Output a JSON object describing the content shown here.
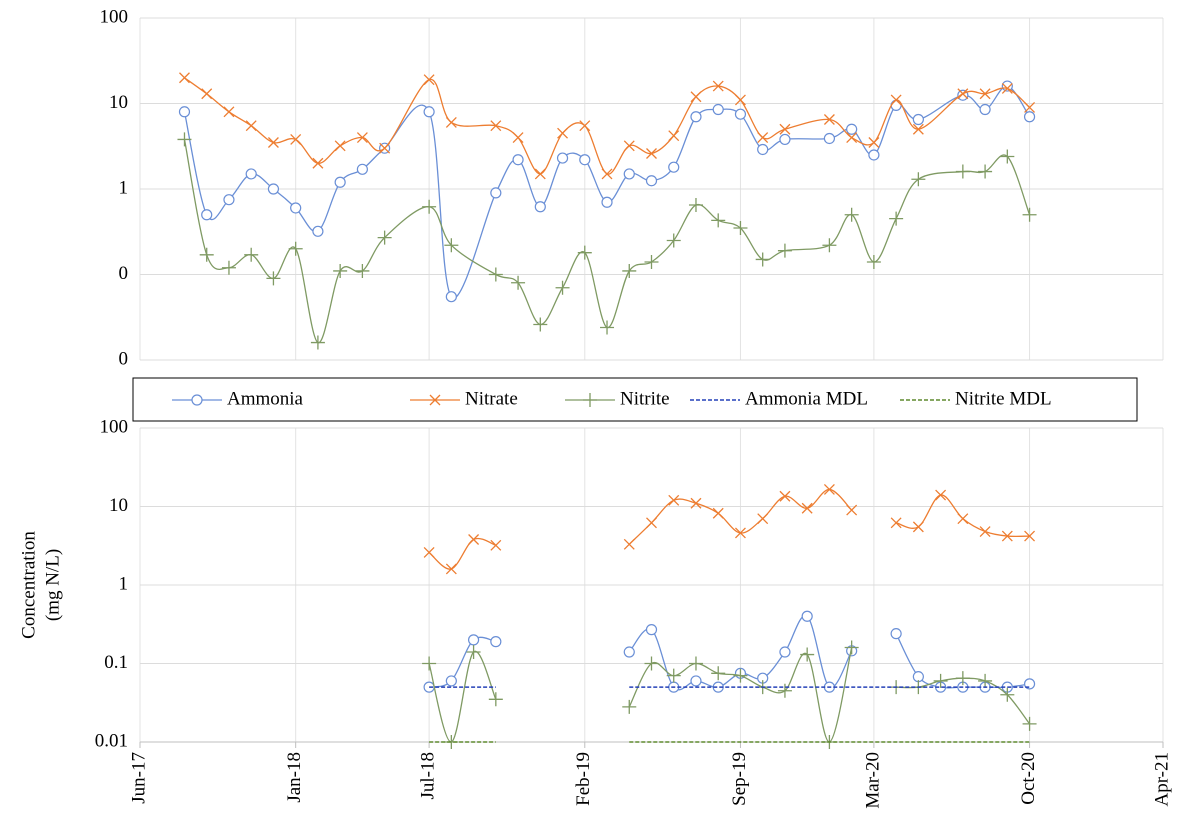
{
  "chart_data": [
    {
      "type": "line",
      "log_y": true,
      "grid": true,
      "ylim": [
        0.01,
        100
      ],
      "yticks": [
        100,
        10,
        1,
        {
          "value": 0.1,
          "label": "0"
        },
        {
          "value": 0.01,
          "label": "0"
        }
      ],
      "series": [
        {
          "color": "#6a8fd6",
          "marker": "circle",
          "x": [
            "2017-08",
            "2017-09",
            "2017-10",
            "2017-11",
            "2017-12",
            "2018-01",
            "2018-02",
            "2018-03",
            "2018-04",
            "2018-05",
            "2018-07",
            "2018-08",
            "2018-10",
            "2018-11",
            "2018-12",
            "2019-01",
            "2019-02",
            "2019-03",
            "2019-04",
            "2019-05",
            "2019-06",
            "2019-07",
            "2019-08",
            "2019-09",
            "2019-10",
            "2019-11",
            "2020-01",
            "2020-02",
            "2020-03",
            "2020-04",
            "2020-05",
            "2020-07",
            "2020-08",
            "2020-09",
            "2020-10"
          ],
          "values": [
            8,
            0.5,
            0.75,
            1.5,
            1,
            0.6,
            0.32,
            1.2,
            1.7,
            3,
            8,
            0.055,
            0.9,
            2.2,
            0.62,
            2.3,
            2.2,
            0.7,
            1.5,
            1.25,
            1.8,
            7,
            8.5,
            7.5,
            2.9,
            3.8,
            3.9,
            5,
            2.5,
            9.5,
            6.5,
            12.5,
            8.5,
            16,
            7
          ]
        },
        {
          "color": "#ed7d31",
          "marker": "cross",
          "x": [
            "2017-08",
            "2017-09",
            "2017-10",
            "2017-11",
            "2017-12",
            "2018-01",
            "2018-02",
            "2018-03",
            "2018-04",
            "2018-05",
            "2018-07",
            "2018-08",
            "2018-10",
            "2018-11",
            "2018-12",
            "2019-01",
            "2019-02",
            "2019-03",
            "2019-04",
            "2019-05",
            "2019-06",
            "2019-07",
            "2019-08",
            "2019-09",
            "2019-10",
            "2019-11",
            "2020-01",
            "2020-02",
            "2020-03",
            "2020-04",
            "2020-05",
            "2020-07",
            "2020-08",
            "2020-09",
            "2020-10"
          ],
          "values": [
            20,
            13,
            8,
            5.5,
            3.5,
            3.8,
            2,
            3.2,
            4,
            3,
            19,
            6,
            5.5,
            4,
            1.5,
            4.5,
            5.5,
            1.5,
            3.2,
            2.6,
            4.2,
            12,
            16,
            11,
            4,
            5,
            6.5,
            4,
            3.5,
            11,
            5,
            13,
            13,
            15,
            9
          ]
        },
        {
          "color": "#7f9a63",
          "marker": "plus",
          "x": [
            "2017-08",
            "2017-09",
            "2017-10",
            "2017-11",
            "2017-12",
            "2018-01",
            "2018-02",
            "2018-03",
            "2018-04",
            "2018-05",
            "2018-07",
            "2018-08",
            "2018-10",
            "2018-11",
            "2018-12",
            "2019-01",
            "2019-02",
            "2019-03",
            "2019-04",
            "2019-05",
            "2019-06",
            "2019-07",
            "2019-08",
            "2019-09",
            "2019-10",
            "2019-11",
            "2020-01",
            "2020-02",
            "2020-03",
            "2020-04",
            "2020-05",
            "2020-07",
            "2020-08",
            "2020-09",
            "2020-10"
          ],
          "values": [
            3.8,
            0.17,
            0.12,
            0.17,
            0.09,
            0.2,
            0.016,
            0.11,
            0.11,
            0.27,
            0.62,
            0.22,
            0.1,
            0.08,
            0.026,
            0.07,
            0.18,
            0.024,
            0.11,
            0.14,
            0.25,
            0.65,
            0.43,
            0.35,
            0.15,
            0.19,
            0.22,
            0.5,
            0.14,
            0.45,
            1.3,
            1.6,
            1.6,
            2.4,
            0.5
          ]
        }
      ]
    },
    {
      "type": "line",
      "log_y": true,
      "grid": true,
      "ylim": [
        0.01,
        100
      ],
      "yticks": [
        100,
        10,
        1,
        0.1,
        0.01
      ],
      "ylabel": [
        "Concentration",
        "(mg N/L)"
      ],
      "xlim": [
        "2017-06",
        "2021-04"
      ],
      "xticks": [
        {
          "value": "2017-06",
          "label": "Jun-17"
        },
        {
          "value": "2018-01",
          "label": "Jan-18"
        },
        {
          "value": "2018-07",
          "label": "Jul-18"
        },
        {
          "value": "2019-02",
          "label": "Feb-19"
        },
        {
          "value": "2019-09",
          "label": "Sep-19"
        },
        {
          "value": "2020-03",
          "label": "Mar-20"
        },
        {
          "value": "2020-10",
          "label": "Oct-20"
        },
        {
          "value": "2021-04",
          "label": "Apr-21"
        }
      ],
      "series": [
        {
          "name": "Ammonia",
          "color": "#6a8fd6",
          "marker": "circle",
          "x": [
            "2018-07",
            "2018-08",
            "2018-09",
            "2018-10",
            "2019-01",
            "2019-04",
            "2019-05",
            "2019-06",
            "2019-07",
            "2019-08",
            "2019-09",
            "2019-10",
            "2019-11",
            "2019-12",
            "2020-01",
            "2020-02",
            "2020-03",
            "2020-04",
            "2020-05",
            "2020-06",
            "2020-07",
            "2020-08",
            "2020-09",
            "2020-10"
          ],
          "values": [
            0.05,
            0.06,
            0.2,
            0.19,
            null,
            0.14,
            0.27,
            0.05,
            0.06,
            0.05,
            0.075,
            0.065,
            0.14,
            0.4,
            0.05,
            0.145,
            null,
            0.24,
            0.068,
            0.05,
            0.05,
            0.05,
            0.05,
            0.055
          ]
        },
        {
          "name": "Nitrate",
          "color": "#ed7d31",
          "marker": "cross",
          "x": [
            "2018-07",
            "2018-08",
            "2018-09",
            "2018-10",
            "2019-01",
            "2019-04",
            "2019-05",
            "2019-06",
            "2019-07",
            "2019-08",
            "2019-09",
            "2019-10",
            "2019-11",
            "2019-12",
            "2020-01",
            "2020-02",
            "2020-03",
            "2020-04",
            "2020-05",
            "2020-06",
            "2020-07",
            "2020-08",
            "2020-09",
            "2020-10"
          ],
          "values": [
            2.6,
            1.6,
            3.8,
            3.2,
            null,
            3.3,
            6.2,
            12,
            11,
            8.2,
            4.6,
            7,
            13.5,
            9.5,
            16.5,
            9,
            null,
            6.2,
            5.5,
            14,
            7,
            4.8,
            4.2,
            4.2
          ]
        },
        {
          "name": "Nitrite",
          "color": "#7f9a63",
          "marker": "plus",
          "x": [
            "2018-07",
            "2018-08",
            "2018-09",
            "2018-10",
            "2019-01",
            "2019-04",
            "2019-05",
            "2019-06",
            "2019-07",
            "2019-08",
            "2019-09",
            "2019-10",
            "2019-11",
            "2019-12",
            "2020-01",
            "2020-02",
            "2020-03",
            "2020-04",
            "2020-05",
            "2020-06",
            "2020-07",
            "2020-08",
            "2020-09",
            "2020-10"
          ],
          "values": [
            0.1,
            0.01,
            0.14,
            0.035,
            null,
            0.028,
            0.1,
            0.07,
            0.1,
            0.075,
            0.07,
            0.05,
            0.045,
            0.13,
            0.01,
            0.16,
            null,
            0.05,
            0.05,
            0.06,
            0.065,
            0.06,
            0.04,
            0.017
          ]
        },
        {
          "name": "Ammonia MDL",
          "color": "#2440b8",
          "dash": true,
          "x": [
            "2018-07",
            "2018-10",
            "2019-01",
            "2019-04",
            "2020-10"
          ],
          "values": [
            0.05,
            0.05,
            null,
            0.05,
            0.05
          ]
        },
        {
          "name": "Nitrite MDL",
          "color": "#5f8a2e",
          "dash": true,
          "x": [
            "2018-07",
            "2018-10",
            "2019-01",
            "2019-04",
            "2020-10"
          ],
          "values": [
            0.01,
            0.01,
            null,
            0.01,
            0.01
          ]
        }
      ]
    }
  ]
}
